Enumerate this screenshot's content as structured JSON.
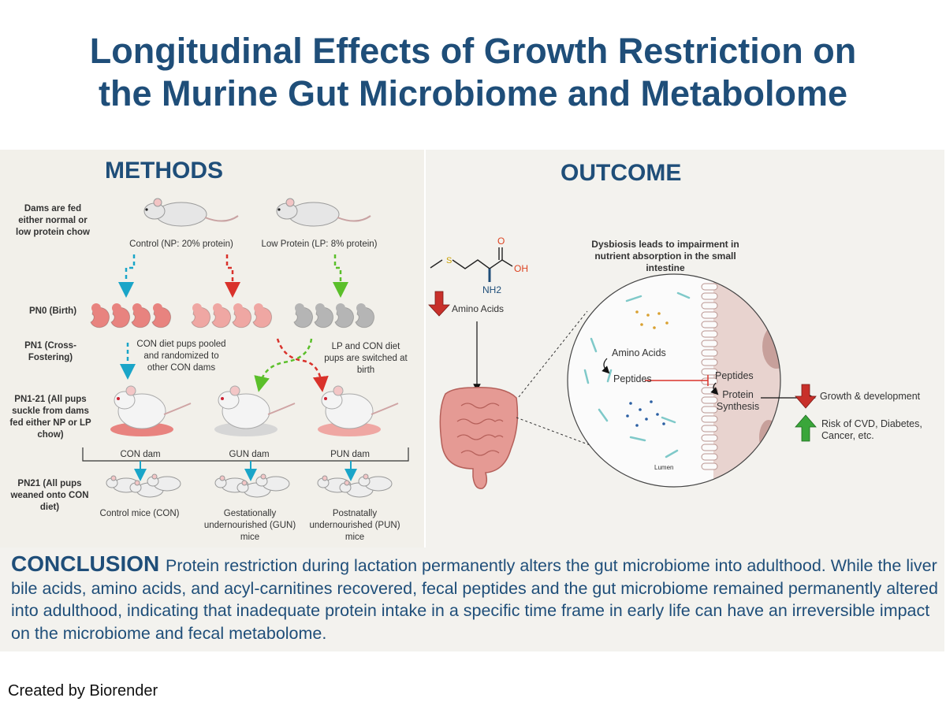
{
  "title": {
    "line1": "Longitudinal Effects of Growth Restriction on",
    "line2": "the Murine Gut Microbiome and Metabolome"
  },
  "methods": {
    "heading": "METHODS",
    "row_labels": {
      "dams": "Dams are fed either normal or low protein chow",
      "pn0": "PN0 (Birth)",
      "pn1": "PN1 (Cross-Fostering)",
      "pn1_21": "PN1-21 (All pups suckle from dams fed either NP or LP chow)",
      "pn21": "PN21 (All pups weaned onto CON diet)"
    },
    "control_label": "Control (NP: 20% protein)",
    "lowprotein_label": "Low Protein (LP: 8% protein)",
    "con_pooled_note": "CON diet pups pooled and randomized to other CON dams",
    "lp_switch_note": "LP and CON diet pups are switched at birth",
    "dam_labels": [
      "CON dam",
      "GUN dam",
      "PUN dam"
    ],
    "mice_groups": [
      "Control mice (CON)",
      "Gestationally undernourished (GUN) mice",
      "Postnatally undernourished (PUN) mice"
    ]
  },
  "outcome": {
    "heading": "OUTCOME",
    "amino_acids": "Amino Acids",
    "molecule": {
      "o": "O",
      "oh": "OH",
      "nh2": "NH2",
      "s": "S"
    },
    "dysbiosis": "Dysbiosis leads to impairment in nutrient absorption in the small intestine",
    "circle_amino": "Amino Acids",
    "circle_peptides_left": "Peptides",
    "circle_peptides_right": "Peptides",
    "protein_synthesis": "Protein Synthesis",
    "lumen": "Lumen",
    "growth": "Growth & development",
    "risk": "Risk of CVD, Diabetes, Cancer, etc."
  },
  "conclusion": {
    "head": "CONCLUSION",
    "text": "Protein restriction during lactation permanently alters the gut microbiome into adulthood. While the liver bile acids, amino acids, and acyl-carnitines recovered, fecal peptides and the gut microbiome remained permanently altered into adulthood, indicating that inadequate protein intake in a specific time frame in early life can have an irreversible impact on the microbiome and fecal metabolome."
  },
  "credit": "Created by Biorender",
  "colors": {
    "title": "#1f4e79",
    "cyan_arrow": "#1aa5c8",
    "red_arrow": "#d9322b",
    "green_arrow": "#5bbf2a",
    "pup_pink": "#e8837f",
    "pup_pink_light": "#efa7a3",
    "pup_gray": "#b5b5b5",
    "down_arrow": "#c8302a",
    "up_arrow": "#3aa63a"
  }
}
